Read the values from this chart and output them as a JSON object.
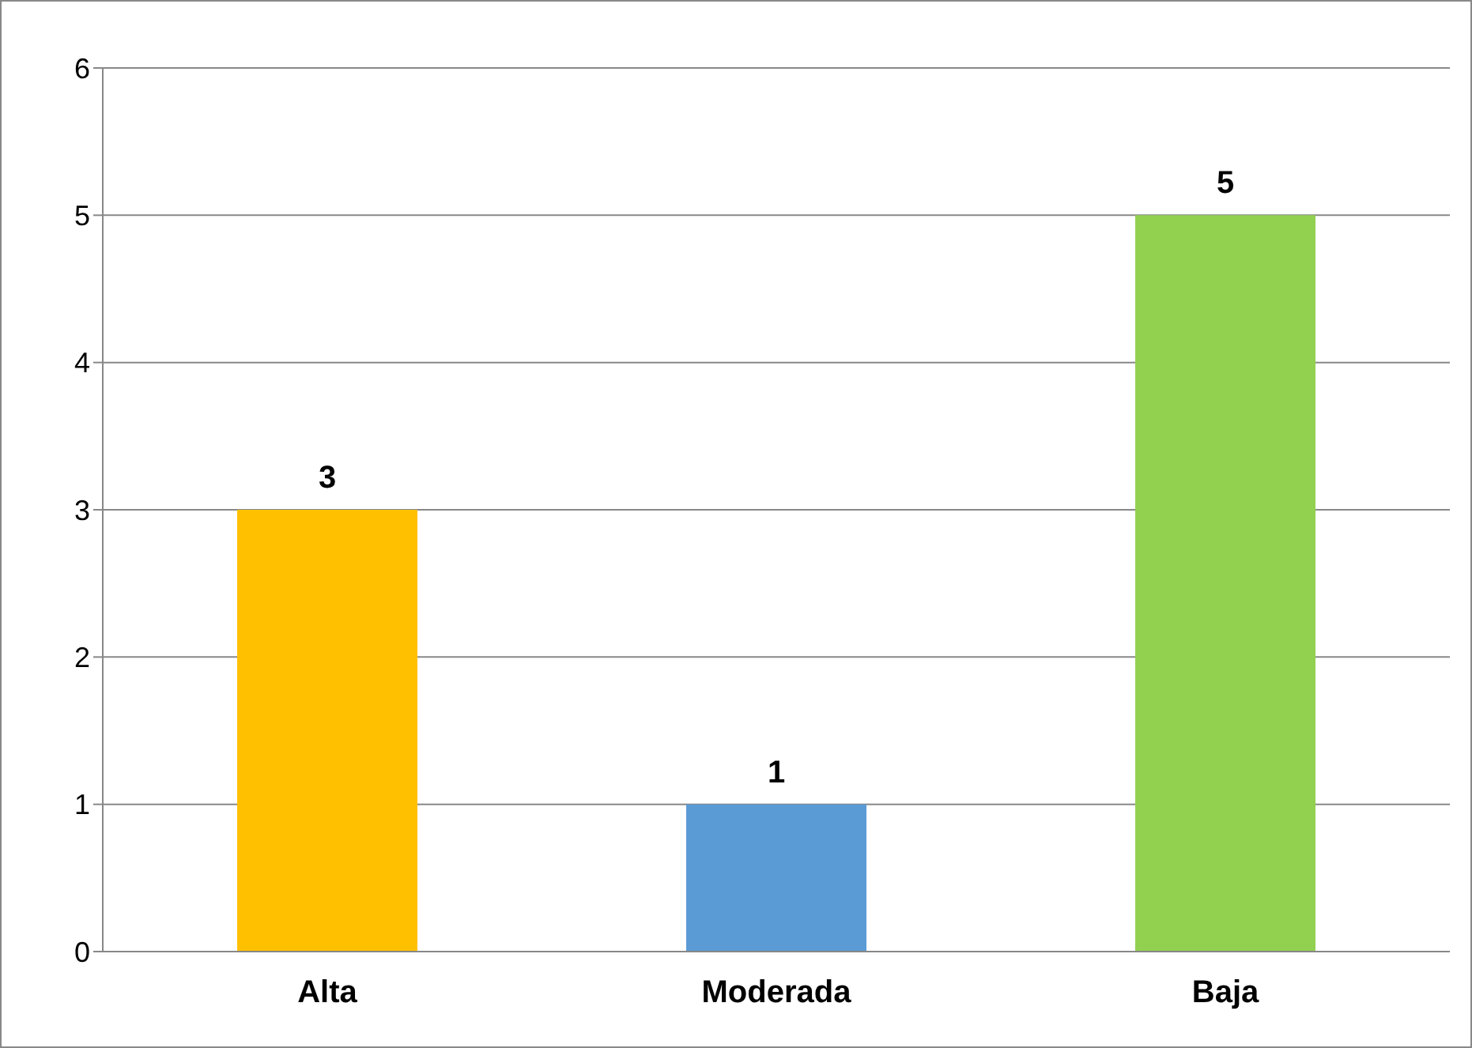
{
  "chart_data": {
    "type": "bar",
    "categories": [
      "Alta",
      "Moderada",
      "Baja"
    ],
    "values": [
      3,
      1,
      5
    ],
    "colors": [
      "#ffc000",
      "#5b9bd5",
      "#92d050"
    ],
    "ylim": [
      0,
      6
    ],
    "yticks": [
      0,
      1,
      2,
      3,
      4,
      5,
      6
    ],
    "grid": "y",
    "data_labels": true
  }
}
